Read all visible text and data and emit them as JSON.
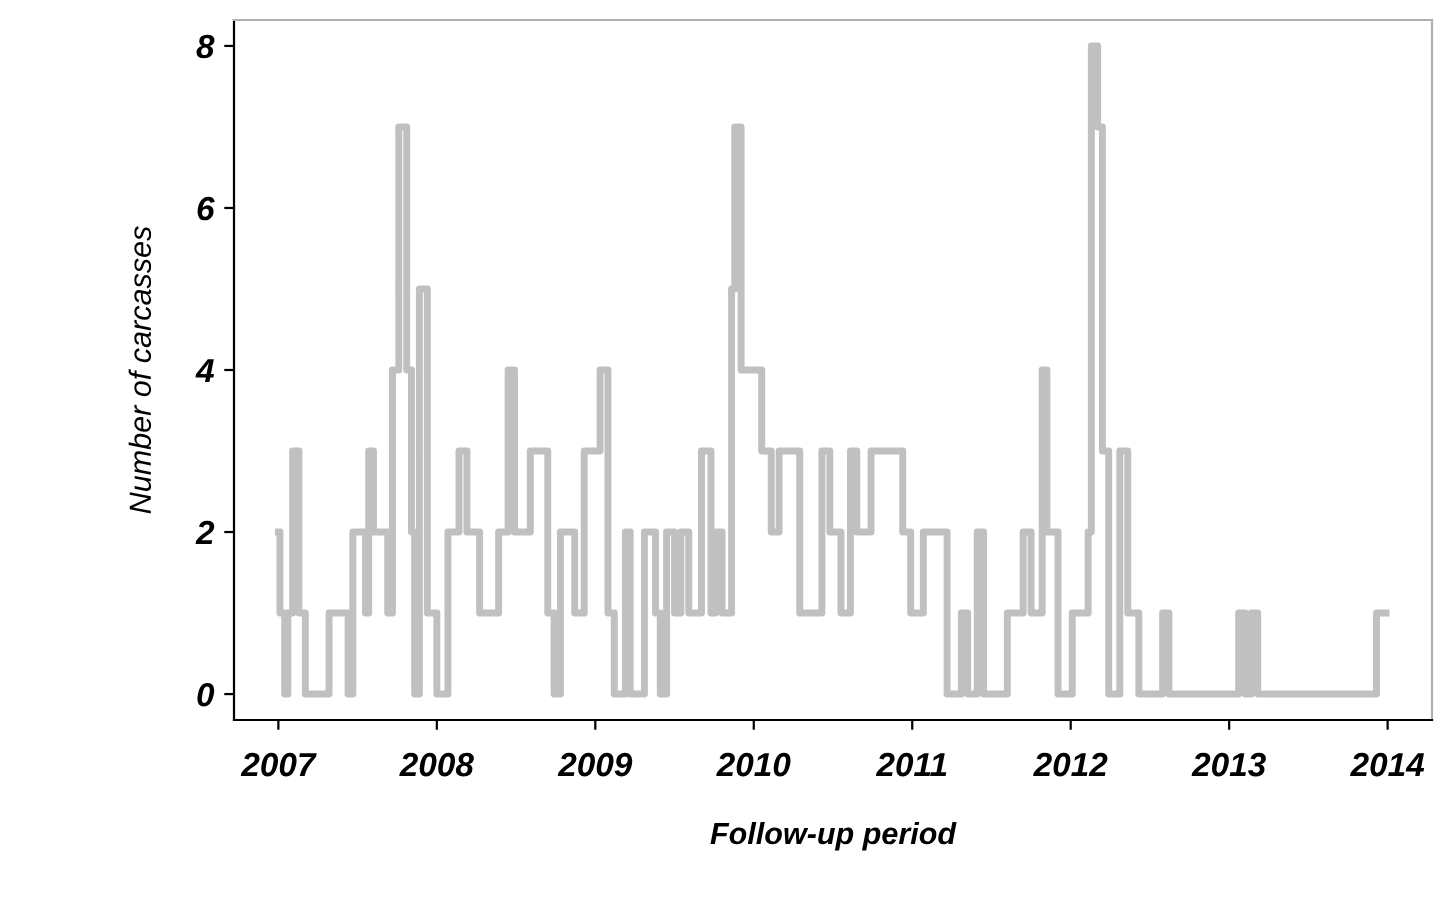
{
  "chart_data": {
    "type": "step",
    "xlabel": "Follow-up period",
    "ylabel": "Number of carcasses",
    "xlim": [
      2006.72,
      2014.28
    ],
    "ylim": [
      -0.32,
      8.32
    ],
    "xticks": [
      2007,
      2008,
      2009,
      2010,
      2011,
      2012,
      2013,
      2014
    ],
    "yticks": [
      0,
      2,
      4,
      6,
      8
    ],
    "grid": false,
    "series": [
      {
        "color": "#c0c0c0",
        "x": [
          2007.0,
          2007.01,
          2007.04,
          2007.06,
          2007.09,
          2007.13,
          2007.17,
          2007.32,
          2007.44,
          2007.47,
          2007.55,
          2007.57,
          2007.6,
          2007.69,
          2007.72,
          2007.76,
          2007.81,
          2007.84,
          2007.86,
          2007.89,
          2007.94,
          2008.0,
          2008.07,
          2008.14,
          2008.19,
          2008.27,
          2008.39,
          2008.45,
          2008.49,
          2008.59,
          2008.7,
          2008.74,
          2008.78,
          2008.87,
          2008.93,
          2009.03,
          2009.08,
          2009.12,
          2009.19,
          2009.22,
          2009.31,
          2009.38,
          2009.41,
          2009.45,
          2009.5,
          2009.54,
          2009.59,
          2009.67,
          2009.73,
          2009.76,
          2009.8,
          2009.86,
          2009.88,
          2009.92,
          2010.05,
          2010.11,
          2010.16,
          2010.29,
          2010.43,
          2010.48,
          2010.55,
          2010.61,
          2010.65,
          2010.74,
          2010.94,
          2010.99,
          2011.07,
          2011.22,
          2011.31,
          2011.35,
          2011.41,
          2011.45,
          2011.6,
          2011.7,
          2011.75,
          2011.82,
          2011.85,
          2011.92,
          2012.01,
          2012.11,
          2012.13,
          2012.17,
          2012.2,
          2012.24,
          2012.31,
          2012.36,
          2012.43,
          2012.58,
          2012.62,
          2013.06,
          2013.1,
          2013.14,
          2013.18,
          2013.93,
          2013.99
        ],
        "values": [
          2,
          1,
          0,
          1,
          3,
          1,
          0,
          1,
          0,
          2,
          1,
          3,
          2,
          1,
          4,
          7,
          4,
          2,
          0,
          5,
          1,
          0,
          2,
          3,
          2,
          1,
          2,
          4,
          2,
          3,
          1,
          0,
          2,
          1,
          3,
          4,
          1,
          0,
          2,
          0,
          2,
          1,
          0,
          2,
          1,
          2,
          1,
          3,
          1,
          2,
          1,
          5,
          7,
          4,
          3,
          2,
          3,
          1,
          3,
          2,
          1,
          3,
          2,
          3,
          2,
          1,
          2,
          0,
          1,
          0,
          2,
          0,
          1,
          2,
          1,
          4,
          2,
          0,
          1,
          2,
          8,
          7,
          3,
          0,
          3,
          1,
          0,
          1,
          0,
          1,
          0,
          1,
          0,
          1,
          1
        ]
      }
    ]
  }
}
